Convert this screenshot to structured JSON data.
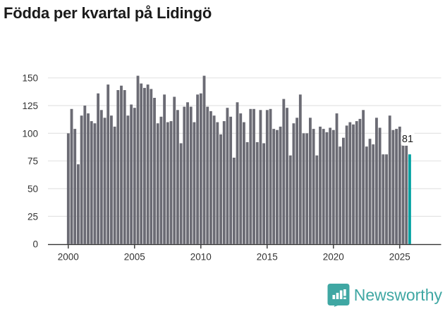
{
  "title": "Födda per kvartal på Lidingö",
  "annotation": {
    "last_value_label": "81"
  },
  "footer": {
    "brand": "Newsworthy",
    "logo_icon": "bar-chart-speech-bubble"
  },
  "colors": {
    "bar": "#6b6b74",
    "accent": "#00a1a1",
    "logo": "#3fa7a3",
    "grid": "#e4e4e4",
    "axis": "#333333",
    "tick_label": "#333333",
    "title": "#1a1a1a",
    "annotation_text": "#222222",
    "background": "#ffffff"
  },
  "chart_data": {
    "type": "bar",
    "title": "Födda per kvartal på Lidingö",
    "frequency": "quarterly",
    "start_period": "2000-Q1",
    "end_period": "2025-Q4",
    "values": [
      100,
      122,
      104,
      72,
      116,
      125,
      118,
      111,
      109,
      136,
      121,
      114,
      144,
      116,
      106,
      139,
      143,
      139,
      116,
      126,
      123,
      152,
      145,
      141,
      144,
      140,
      132,
      109,
      115,
      135,
      110,
      111,
      133,
      121,
      91,
      124,
      128,
      124,
      110,
      135,
      136,
      152,
      124,
      120,
      116,
      110,
      99,
      111,
      123,
      115,
      78,
      128,
      118,
      110,
      92,
      122,
      122,
      92,
      121,
      91,
      121,
      122,
      104,
      103,
      106,
      131,
      123,
      80,
      109,
      114,
      135,
      100,
      100,
      114,
      104,
      80,
      106,
      104,
      101,
      105,
      103,
      118,
      88,
      96,
      107,
      110,
      108,
      111,
      113,
      121,
      88,
      95,
      90,
      114,
      105,
      81,
      81,
      116,
      103,
      104,
      106,
      90,
      89,
      81
    ],
    "highlight_last": true,
    "last_value_label": "81",
    "x_tick_labels": [
      "2000",
      "2005",
      "2010",
      "2015",
      "2020",
      "2025"
    ],
    "y_ticks": [
      0,
      25,
      50,
      75,
      100,
      125,
      150
    ],
    "ylim": [
      0,
      157
    ],
    "grid": "horizontal",
    "legend": "none",
    "xlabel": "",
    "ylabel": ""
  }
}
